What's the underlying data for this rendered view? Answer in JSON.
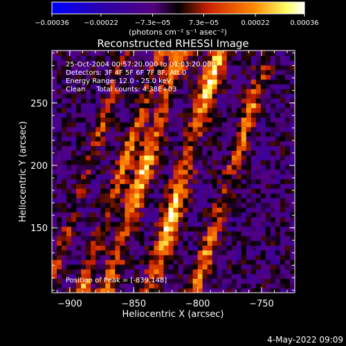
{
  "chart_data": {
    "type": "heatmap",
    "title": "Reconstructed RHESSI Image",
    "xlabel": "Heliocentric X (arcsec)",
    "ylabel": "Heliocentric Y (arcsec)",
    "xlim": [
      -914,
      -724
    ],
    "ylim": [
      98,
      292
    ],
    "xticks": [
      -900,
      -850,
      -800,
      -750
    ],
    "xtick_labels": [
      "−900",
      "−850",
      "−800",
      "−750"
    ],
    "yticks": [
      150,
      200,
      250
    ],
    "ytick_labels": [
      "150",
      "200",
      "250"
    ],
    "colorbar": {
      "range": [
        -0.00036,
        0.00036
      ],
      "ticks": [
        -0.00036,
        -0.00022,
        -7.3e-05,
        7.3e-05,
        0.00022,
        0.00036
      ],
      "tick_labels": [
        "−0.00036",
        "−0.00022",
        "−7.3e−05",
        "7.3e−05",
        "0.00022",
        "0.00036"
      ],
      "unit_label": "(photons cm⁻² s⁻¹ asec⁻²)",
      "colors": [
        "#0000ff",
        "#2a00aa",
        "#550080",
        "#000000",
        "#cc2200",
        "#ff8800",
        "#ffff66",
        "#ffffff"
      ]
    },
    "annotations": [
      "25-Oct-2004 00:57:20.000 to 01:03:20.000",
      "Detectors: 3F 4F 5F 6F 7F 8F, Att 0",
      "Energy Range: 12.0 - 25.0 keV",
      "Clean     Total counts: 4.38E+03",
      "Position of Peak = [-839,148]"
    ],
    "date_stamp": "4-May-2022 09:09",
    "features": {
      "ridges": [
        {
          "x_at_y200": -858,
          "slope": 0.32,
          "width": 4,
          "amp": 0.75
        },
        {
          "x_at_y200": -841,
          "slope": 0.3,
          "width": 5,
          "amp": 0.95
        },
        {
          "x_at_y200": -809,
          "slope": 0.28,
          "width": 5,
          "amp": 1.0
        },
        {
          "x_at_y200": -772,
          "slope": 0.3,
          "width": 4,
          "amp": 0.75
        },
        {
          "x_at_y200": -885,
          "slope": 0.32,
          "width": 3,
          "amp": 0.5
        }
      ],
      "peak": [
        -839,
        148
      ]
    }
  }
}
